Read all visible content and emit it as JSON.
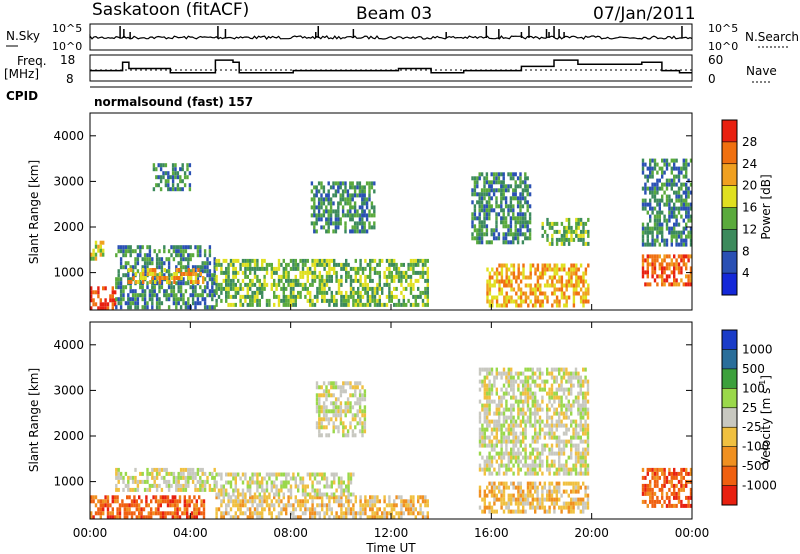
{
  "header": {
    "station": "Saskatoon (fitACF)",
    "beam": "Beam 03",
    "date": "07/Jan/2011"
  },
  "top_panels": {
    "nsky_label": "N.Sky",
    "nsky_ticks": [
      "10^5",
      "10^0"
    ],
    "nsearch_label": "N.Search",
    "nsearch_ticks": [
      "10^5",
      "10^0"
    ],
    "freq_label_line1": "Freq.",
    "freq_label_line2": "[MHz]",
    "freq_ticks": [
      "18",
      "8"
    ],
    "nave_label": "Nave",
    "nave_ticks": [
      "60",
      "0"
    ],
    "cpid_label": "CPID",
    "cpid_text": "normalsound (fast) 157"
  },
  "power_panel": {
    "ylabel": "Slant Range [km]",
    "yticks": [
      "4000",
      "3000",
      "2000",
      "1000"
    ],
    "colorbar_label": "Power [dB]",
    "colorbar_ticks": [
      "28",
      "24",
      "20",
      "16",
      "12",
      "8",
      "4"
    ],
    "colors": [
      "#1428d8",
      "#2a50b4",
      "#3c8a5c",
      "#5aaa3c",
      "#e0e020",
      "#f0a020",
      "#f07010",
      "#e82010"
    ]
  },
  "velocity_panel": {
    "ylabel": "Slant Range [km]",
    "yticks": [
      "4000",
      "3000",
      "2000",
      "1000"
    ],
    "colorbar_label": "Velocity [m s",
    "colorbar_label_sup": "-1",
    "colorbar_label_end": "]",
    "colorbar_ticks": [
      "1000",
      "500",
      "100",
      "25",
      "-25",
      "-100",
      "-500",
      "-1000"
    ],
    "colors": [
      "#1a3cc8",
      "#2a6e9a",
      "#3ca03c",
      "#9ad84a",
      "#c8c8c0",
      "#f0c040",
      "#f09020",
      "#f06010",
      "#e82010"
    ]
  },
  "x_axis": {
    "ticks": [
      "00:00",
      "04:00",
      "08:00",
      "12:00",
      "16:00",
      "20:00",
      "00:00"
    ],
    "label": "Time UT"
  },
  "chart_data": {
    "type": "heatmap",
    "x_range_hours": [
      0,
      24
    ],
    "range_axis_km": [
      180,
      4500
    ],
    "gaps_hours": [
      [
        19.95,
        22.0
      ]
    ],
    "frequency_mhz": [
      {
        "t": 0.0,
        "v": 12
      },
      {
        "t": 1.3,
        "v": 16
      },
      {
        "t": 1.55,
        "v": 13
      },
      {
        "t": 3.2,
        "v": 11
      },
      {
        "t": 5.0,
        "v": 17
      },
      {
        "t": 5.7,
        "v": 16
      },
      {
        "t": 5.95,
        "v": 11
      },
      {
        "t": 8.1,
        "v": 12
      },
      {
        "t": 12.3,
        "v": 13
      },
      {
        "t": 13.6,
        "v": 11
      },
      {
        "t": 14.9,
        "v": 12
      },
      {
        "t": 17.2,
        "v": 14
      },
      {
        "t": 18.5,
        "v": 17
      },
      {
        "t": 19.45,
        "v": 15
      },
      {
        "t": 22.0,
        "v": 16
      },
      {
        "t": 22.8,
        "v": 12
      },
      {
        "t": 23.5,
        "v": 11
      }
    ],
    "power_blobs": [
      {
        "t0": 0.0,
        "t1": 1.0,
        "r0": 200,
        "r1": 700,
        "level": 28
      },
      {
        "t0": 0.0,
        "t1": 0.5,
        "r0": 1300,
        "r1": 1700,
        "level": 18
      },
      {
        "t0": 1.0,
        "t1": 5.0,
        "r0": 200,
        "r1": 1600,
        "level": 10
      },
      {
        "t0": 1.5,
        "t1": 4.5,
        "r0": 800,
        "r1": 1100,
        "level": 22
      },
      {
        "t0": 2.5,
        "t1": 4.0,
        "r0": 2800,
        "r1": 3400,
        "level": 8
      },
      {
        "t0": 5.0,
        "t1": 13.5,
        "r0": 250,
        "r1": 1300,
        "level": 12
      },
      {
        "t0": 8.8,
        "t1": 11.3,
        "r0": 1900,
        "r1": 3000,
        "level": 10
      },
      {
        "t0": 15.2,
        "t1": 17.5,
        "r0": 1700,
        "r1": 3200,
        "level": 9
      },
      {
        "t0": 15.8,
        "t1": 19.9,
        "r0": 300,
        "r1": 1200,
        "level": 22
      },
      {
        "t0": 18.0,
        "t1": 19.9,
        "r0": 1600,
        "r1": 2200,
        "level": 12
      },
      {
        "t0": 22.0,
        "t1": 24.0,
        "r0": 700,
        "r1": 1400,
        "level": 24
      },
      {
        "t0": 22.0,
        "t1": 24.0,
        "r0": 1600,
        "r1": 3500,
        "level": 8
      }
    ],
    "velocity_blobs": [
      {
        "t0": 0.0,
        "t1": 4.5,
        "r0": 200,
        "r1": 700,
        "v": -300
      },
      {
        "t0": 1.0,
        "t1": 5.0,
        "r0": 800,
        "r1": 1300,
        "v": 0
      },
      {
        "t0": 5.0,
        "t1": 13.5,
        "r0": 200,
        "r1": 700,
        "v": -150
      },
      {
        "t0": 5.0,
        "t1": 10.5,
        "r0": 700,
        "r1": 1200,
        "v": 0
      },
      {
        "t0": 9.0,
        "t1": 11.0,
        "r0": 2000,
        "r1": 3200,
        "v": 0
      },
      {
        "t0": 15.5,
        "t1": 19.9,
        "r0": 300,
        "r1": 1000,
        "v": -200
      },
      {
        "t0": 15.5,
        "t1": 19.9,
        "r0": 1200,
        "r1": 3500,
        "v": 0
      },
      {
        "t0": 22.0,
        "t1": 24.0,
        "r0": 500,
        "r1": 1300,
        "v": -600
      }
    ]
  }
}
